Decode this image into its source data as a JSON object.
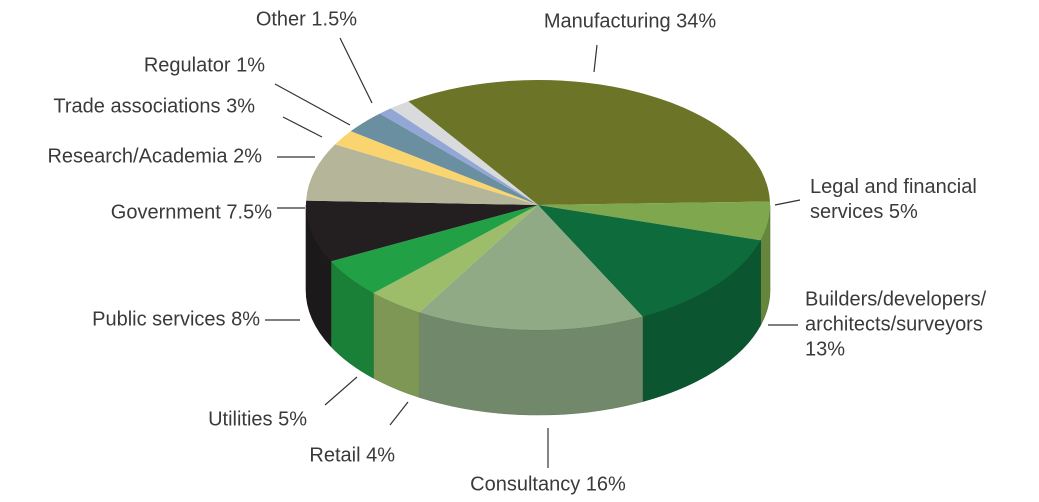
{
  "chart_data": {
    "type": "pie3d",
    "categories": [
      "Manufacturing",
      "Legal and financial services",
      "Builders/developers/architects/surveyors",
      "Consultancy",
      "Retail",
      "Utilities",
      "Public services",
      "Government",
      "Research/Academia",
      "Trade associations",
      "Regulator",
      "Other"
    ],
    "values": [
      34,
      5,
      13,
      16,
      4,
      5,
      8,
      7.5,
      2,
      3,
      1,
      1.5
    ],
    "value_labels": [
      "34%",
      "5%",
      "13%",
      "16%",
      "4%",
      "5%",
      "8%",
      "7.5%",
      "2%",
      "3%",
      "1%",
      "1.5%"
    ],
    "colors": [
      "#6b7427",
      "#7fa84e",
      "#0e6b3c",
      "#8faa85",
      "#9dbd6a",
      "#21a046",
      "#231f20",
      "#b5b59a",
      "#f9d46f",
      "#6a8fa0",
      "#93a7d6",
      "#d9dadb"
    ]
  }
}
